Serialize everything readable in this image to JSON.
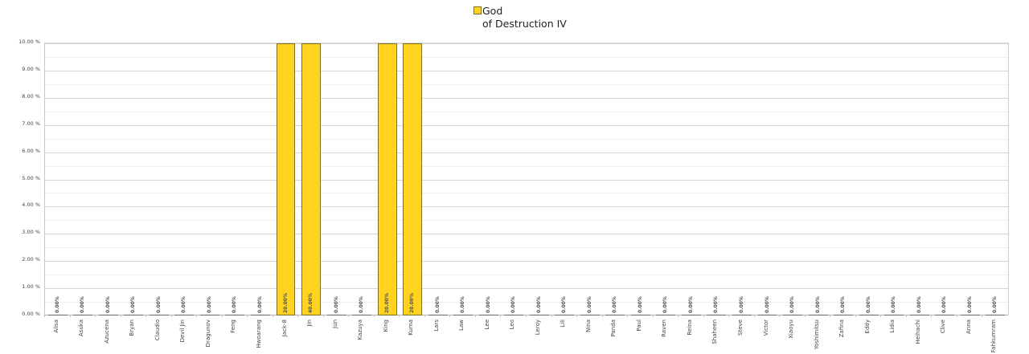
{
  "chart_data": {
    "type": "bar",
    "title": "",
    "xlabel": "",
    "ylabel": "",
    "ylim": [
      0,
      10
    ],
    "y_tick_labels": [
      "0.00 %",
      "1.00 %",
      "2.00 %",
      "3.00 %",
      "4.00 %",
      "5.00 %",
      "6.00 %",
      "7.00 %",
      "8.00 %",
      "9.00 %",
      "10.00 %"
    ],
    "grid": true,
    "legend_position": "top",
    "categories": [
      "Alisa",
      "Asuka",
      "Azucena",
      "Bryan",
      "Claudio",
      "Devil Jin",
      "Dragunov",
      "Feng",
      "Hwoarang",
      "Jack-8",
      "Jin",
      "Jun",
      "Kazuya",
      "King",
      "Kuma",
      "Lars",
      "Law",
      "Lee",
      "Leo",
      "Leroy",
      "Lili",
      "Nina",
      "Panda",
      "Paul",
      "Raven",
      "Reina",
      "Shaheen",
      "Steve",
      "Victor",
      "Xiaoyu",
      "Yoshimitsu",
      "Zafina",
      "Eddy",
      "Lidia",
      "Heihachi",
      "Clive",
      "Anna",
      "Fahkumram"
    ],
    "series": [
      {
        "name": "God\nof Destruction IV",
        "color": "#ffd320",
        "values": [
          0,
          0,
          0,
          0,
          0,
          0,
          0,
          0,
          0,
          20,
          40,
          0,
          0,
          20,
          20,
          0,
          0,
          0,
          0,
          0,
          0,
          0,
          0,
          0,
          0,
          0,
          0,
          0,
          0,
          0,
          0,
          0,
          0,
          0,
          0,
          0,
          0,
          0
        ],
        "value_labels": [
          "0.00%",
          "0.00%",
          "0.00%",
          "0.00%",
          "0.00%",
          "0.00%",
          "0.00%",
          "0.00%",
          "0.00%",
          "20.00%",
          "40.00%",
          "0.00%",
          "0.00%",
          "20.00%",
          "20.00%",
          "0.00%",
          "0.00%",
          "0.00%",
          "0.00%",
          "0.00%",
          "0.00%",
          "0.00%",
          "0.00%",
          "0.00%",
          "0.00%",
          "0.00%",
          "0.00%",
          "0.00%",
          "0.00%",
          "0.00%",
          "0.00%",
          "0.00%",
          "0.00%",
          "0.00%",
          "0.00%",
          "0.00%",
          "0.00%",
          "0.00%"
        ]
      }
    ]
  },
  "legend": {
    "label": "God\nof Destruction IV",
    "swatch_color": "#ffd320"
  }
}
